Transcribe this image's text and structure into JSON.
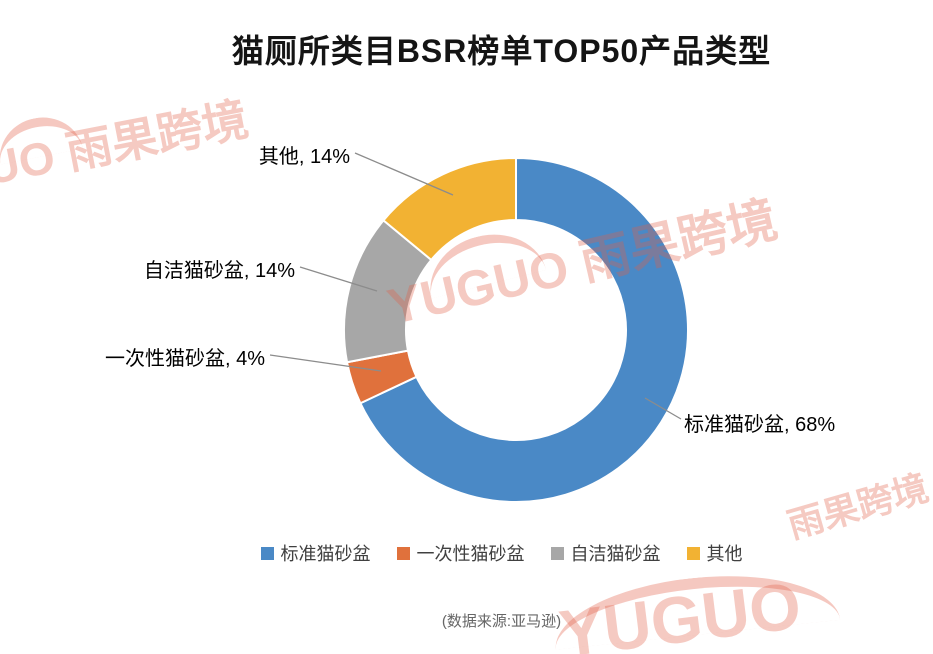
{
  "page": {
    "title": "猫厕所类目BSR榜单TOP50产品类型",
    "source_note": "(数据来源:亚马逊)"
  },
  "watermark": {
    "brand_en": "YUGUO",
    "brand_cn": "雨果跨境",
    "color": "#e25f46"
  },
  "chart_data": {
    "type": "pie",
    "subtype": "donut",
    "title": "猫厕所类目BSR榜单TOP50产品类型",
    "categories": [
      "标准猫砂盆",
      "一次性猫砂盆",
      "自洁猫砂盆",
      "其他"
    ],
    "values": [
      68,
      4,
      14,
      14
    ],
    "unit": "%",
    "colors": [
      "#4A89C6",
      "#E0713C",
      "#A7A7A7",
      "#F2B233"
    ],
    "start_angle_deg": 0,
    "direction": "clockwise",
    "legend_position": "bottom",
    "donut_hole": true,
    "segment_border_color": "#ffffff"
  },
  "callouts": [
    "其他, 14%",
    "自洁猫砂盆, 14%",
    "一次性猫砂盆, 4%",
    "标准猫砂盆, 68%"
  ]
}
